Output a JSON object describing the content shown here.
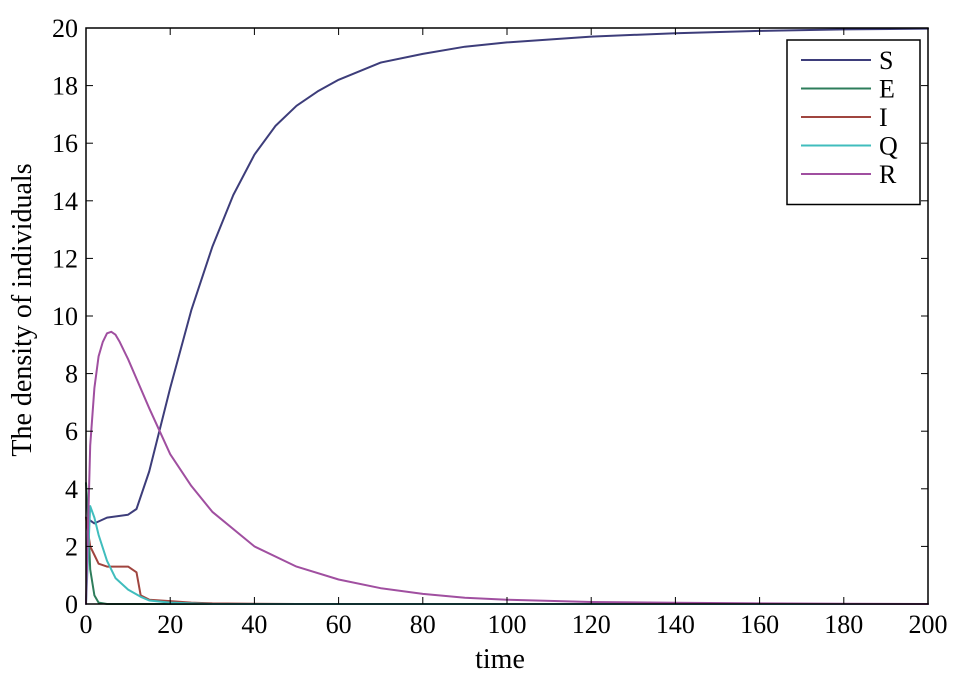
{
  "chart_data": {
    "type": "line",
    "title": "",
    "xlabel": "time",
    "ylabel": "The density of individuals",
    "xlim": [
      0,
      200
    ],
    "ylim": [
      0,
      20
    ],
    "xticks": [
      "0",
      "20",
      "40",
      "60",
      "80",
      "100",
      "120",
      "140",
      "160",
      "180",
      "200"
    ],
    "yticks": [
      "0",
      "2",
      "4",
      "6",
      "8",
      "10",
      "12",
      "14",
      "16",
      "18",
      "20"
    ],
    "grid": false,
    "legend_position": "top-right",
    "series": [
      {
        "name": "S",
        "color": "#3d3d7a",
        "x": [
          0,
          1,
          2,
          5,
          10,
          12,
          15,
          20,
          25,
          30,
          35,
          40,
          45,
          50,
          55,
          60,
          70,
          80,
          90,
          100,
          120,
          140,
          160,
          180,
          200
        ],
        "y": [
          3.0,
          2.9,
          2.8,
          3.0,
          3.1,
          3.3,
          4.6,
          7.5,
          10.2,
          12.4,
          14.2,
          15.6,
          16.6,
          17.3,
          17.8,
          18.2,
          18.8,
          19.1,
          19.35,
          19.5,
          19.7,
          19.82,
          19.9,
          19.95,
          19.98
        ]
      },
      {
        "name": "E",
        "color": "#2e7d5b",
        "x": [
          0,
          0.5,
          1,
          2,
          3,
          5,
          10,
          20,
          50,
          100,
          200
        ],
        "y": [
          4.2,
          3.0,
          1.2,
          0.3,
          0.05,
          0.0,
          0.0,
          0.0,
          0.0,
          0.0,
          0.0
        ]
      },
      {
        "name": "I",
        "color": "#a0453f",
        "x": [
          0,
          1,
          2,
          3,
          5,
          10,
          12,
          13,
          15,
          20,
          25,
          30,
          50,
          100,
          200
        ],
        "y": [
          3.0,
          2.0,
          1.7,
          1.4,
          1.3,
          1.3,
          1.1,
          0.3,
          0.15,
          0.1,
          0.05,
          0.02,
          0.0,
          0.0,
          0.0
        ]
      },
      {
        "name": "Q",
        "color": "#40bdbd",
        "x": [
          0,
          1,
          2,
          3,
          5,
          7,
          10,
          13,
          15,
          20,
          25,
          30,
          50,
          100,
          200
        ],
        "y": [
          0.0,
          3.4,
          3.0,
          2.4,
          1.5,
          0.9,
          0.5,
          0.25,
          0.12,
          0.05,
          0.02,
          0.0,
          0.0,
          0.0,
          0.0
        ]
      },
      {
        "name": "R",
        "color": "#a04fa0",
        "x": [
          0,
          1,
          2,
          3,
          4,
          5,
          6,
          7,
          8,
          10,
          15,
          20,
          25,
          30,
          40,
          50,
          60,
          70,
          80,
          90,
          100,
          120,
          140,
          160,
          180,
          200
        ],
        "y": [
          0.0,
          5.5,
          7.5,
          8.6,
          9.1,
          9.4,
          9.45,
          9.35,
          9.1,
          8.5,
          6.8,
          5.2,
          4.1,
          3.2,
          2.0,
          1.3,
          0.85,
          0.55,
          0.35,
          0.22,
          0.15,
          0.07,
          0.04,
          0.02,
          0.01,
          0.0
        ]
      }
    ]
  }
}
